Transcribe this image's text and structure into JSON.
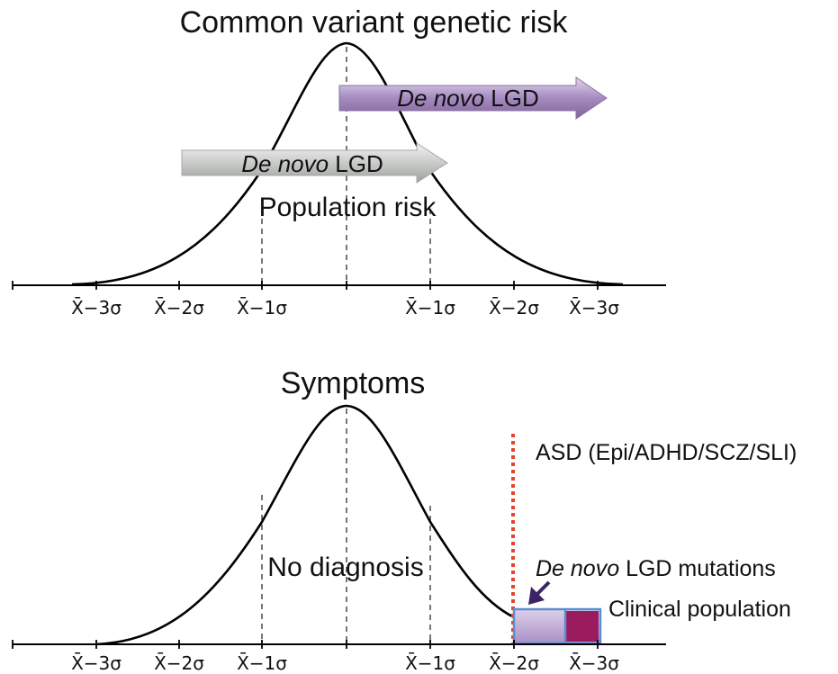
{
  "top_panel": {
    "title": "Common variant genetic risk",
    "arrow_purple": {
      "em": "De novo",
      "rest": " LGD"
    },
    "arrow_gray": {
      "em": "De novo",
      "rest": " LGD"
    },
    "curve_label": "Population risk",
    "axis_ticks": [
      "X̄−3σ",
      "X̄−2σ",
      "X̄−1σ",
      "X̄−1σ",
      "X̄−2σ",
      "X̄−3σ"
    ]
  },
  "bottom_panel": {
    "title": "Symptoms",
    "curve_label": "No diagnosis",
    "threshold_label": "ASD (Epi/ADHD/SCZ/SLI)",
    "mutations_label": {
      "em": "De novo",
      "rest": " LGD mutations"
    },
    "clinical_label": "Clinical population",
    "axis_ticks": [
      "X̄−3σ",
      "X̄−2σ",
      "X̄−1σ",
      "X̄−1σ",
      "X̄−2σ",
      "X̄−3σ"
    ]
  },
  "colors": {
    "purple_arrow": "#a58bbf",
    "gray_arrow": "#c8cbc8",
    "threshold_line": "#e0452e",
    "box_light": "#c2a8d6",
    "box_dark": "#9b1c5e",
    "box_border": "#5b8ed0",
    "pointer_arrow": "#3b2466"
  }
}
